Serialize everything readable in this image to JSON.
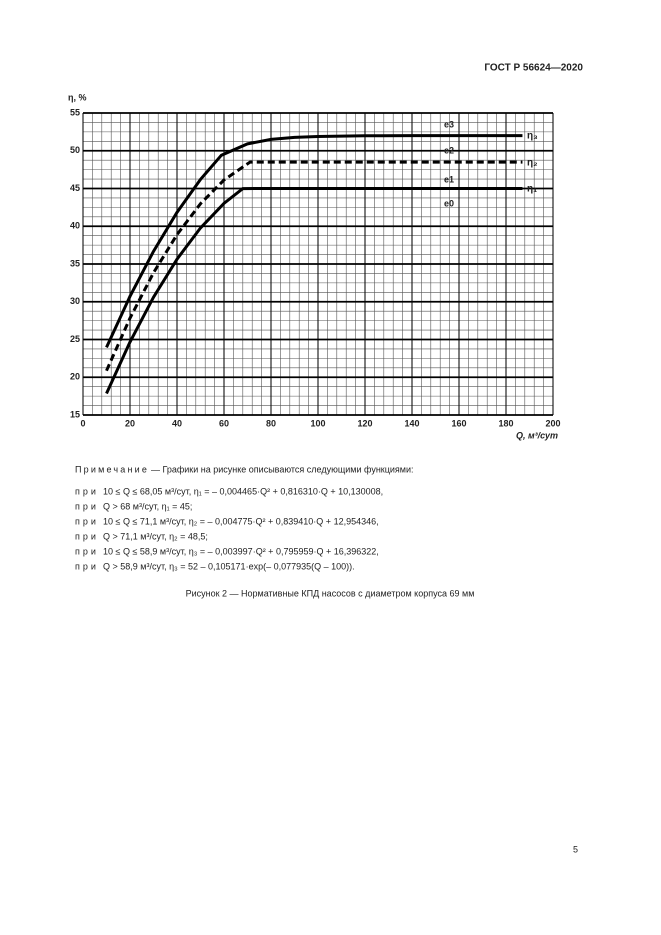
{
  "header": {
    "title": "ГОСТ Р 56624—2020"
  },
  "chart_data": {
    "type": "line",
    "ylabel": "η, %",
    "xlabel": "Q, м³/сут",
    "xlim": [
      0,
      200
    ],
    "xticks": [
      0,
      20,
      40,
      60,
      80,
      100,
      120,
      140,
      160,
      180,
      200
    ],
    "ylim": [
      15,
      55
    ],
    "yticks": [
      15,
      20,
      25,
      30,
      35,
      40,
      45,
      50,
      55
    ],
    "grid": true,
    "annotations": [
      "е3",
      "е2",
      "е1",
      "е0"
    ],
    "series": [
      {
        "name": "η₃",
        "color": "#000000",
        "line_style": "solid",
        "x": [
          10,
          20,
          30,
          40,
          50,
          58.9,
          70,
          80,
          90,
          100,
          120,
          140,
          187
        ],
        "values": [
          23.96,
          30.72,
          36.68,
          41.84,
          46.2,
          49.41,
          50.91,
          51.5,
          51.77,
          51.89,
          51.98,
          52,
          52
        ]
      },
      {
        "name": "η₂",
        "color": "#000000",
        "line_style": "dashed",
        "x": [
          10,
          20,
          30,
          40,
          50,
          60,
          71.1,
          80,
          120,
          187
        ],
        "values": [
          20.87,
          27.83,
          33.84,
          38.89,
          42.99,
          46.13,
          48.5,
          48.5,
          48.5,
          48.5
        ]
      },
      {
        "name": "η₁",
        "color": "#000000",
        "line_style": "solid",
        "x": [
          10,
          20,
          30,
          40,
          50,
          60,
          68,
          80,
          120,
          187
        ],
        "values": [
          17.85,
          24.67,
          30.6,
          35.64,
          39.78,
          43.03,
          44.99,
          45,
          45,
          45
        ]
      }
    ]
  },
  "note": {
    "label": "Примечание",
    "text": "— Графики на рисунке описываются следующими функциями:",
    "lines": [
      {
        "prefix": "при",
        "formula": "10 ≤ Q ≤ 68,05 м³/сут, η₁ = – 0,004465·Q² + 0,816310·Q + 10,130008,"
      },
      {
        "prefix": "при",
        "formula": "Q > 68 м³/сут, η₁ = 45;"
      },
      {
        "prefix": "при",
        "formula": "10 ≤ Q ≤ 71,1 м³/сут, η₂ = – 0,004775·Q² + 0,839410·Q + 12,954346,"
      },
      {
        "prefix": "при",
        "formula": "Q > 71,1 м³/сут, η₂ = 48,5;"
      },
      {
        "prefix": "при",
        "formula": "10 ≤ Q ≤ 58,9 м³/сут, η₃ = – 0,003997·Q² + 0,795959·Q + 16,396322,"
      },
      {
        "prefix": "при",
        "formula": "Q > 58,9 м³/сут, η₃ = 52 – 0,105171·exp(– 0,077935(Q – 100))."
      }
    ]
  },
  "caption": "Рисунок 2 — Нормативные КПД насосов с диаметром корпуса 69 мм",
  "page_number": "5"
}
